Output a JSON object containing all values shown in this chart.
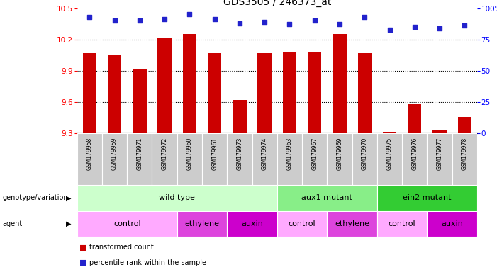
{
  "title": "GDS3505 / 246373_at",
  "samples": [
    "GSM179958",
    "GSM179959",
    "GSM179971",
    "GSM179972",
    "GSM179960",
    "GSM179961",
    "GSM179973",
    "GSM179974",
    "GSM179963",
    "GSM179967",
    "GSM179969",
    "GSM179970",
    "GSM179975",
    "GSM179976",
    "GSM179977",
    "GSM179978"
  ],
  "bar_values": [
    10.07,
    10.05,
    9.91,
    10.22,
    10.25,
    10.07,
    9.62,
    10.07,
    10.08,
    10.08,
    10.25,
    10.07,
    9.31,
    9.58,
    9.33,
    9.46
  ],
  "percentile_values": [
    93,
    90,
    90,
    91,
    95,
    91,
    88,
    89,
    87,
    90,
    87,
    93,
    83,
    85,
    84,
    86
  ],
  "ylim_left": [
    9.3,
    10.5
  ],
  "ylim_right": [
    0,
    100
  ],
  "yticks_left": [
    9.3,
    9.6,
    9.9,
    10.2,
    10.5
  ],
  "yticks_right": [
    0,
    25,
    50,
    75,
    100
  ],
  "bar_color": "#cc0000",
  "dot_color": "#2222cc",
  "bg_color": "#ffffff",
  "genotype_groups": [
    {
      "label": "wild type",
      "start": 0,
      "end": 8,
      "color": "#ccffcc"
    },
    {
      "label": "aux1 mutant",
      "start": 8,
      "end": 12,
      "color": "#88ee88"
    },
    {
      "label": "ein2 mutant",
      "start": 12,
      "end": 16,
      "color": "#33cc33"
    }
  ],
  "agent_groups": [
    {
      "label": "control",
      "start": 0,
      "end": 4,
      "color": "#ffaaff"
    },
    {
      "label": "ethylene",
      "start": 4,
      "end": 6,
      "color": "#dd44dd"
    },
    {
      "label": "auxin",
      "start": 6,
      "end": 8,
      "color": "#cc00cc"
    },
    {
      "label": "control",
      "start": 8,
      "end": 10,
      "color": "#ffaaff"
    },
    {
      "label": "ethylene",
      "start": 10,
      "end": 12,
      "color": "#dd44dd"
    },
    {
      "label": "control",
      "start": 12,
      "end": 14,
      "color": "#ffaaff"
    },
    {
      "label": "auxin",
      "start": 14,
      "end": 16,
      "color": "#cc00cc"
    }
  ]
}
